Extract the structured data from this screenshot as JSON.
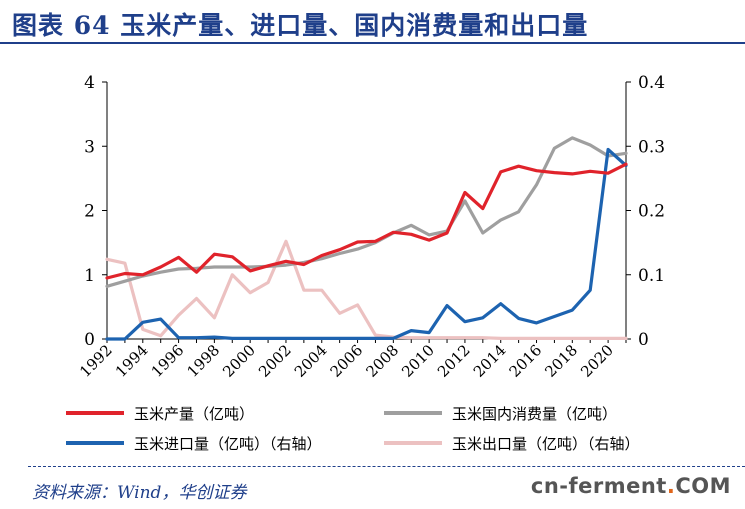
{
  "header": {
    "title": "图表 64    玉米产量、进口量、国内消费量和出口量"
  },
  "source": "资料来源：Wind，华创证券",
  "watermark": {
    "pre": "cn-ferment",
    "dot": ".",
    "post": "COM"
  },
  "chart_data": {
    "type": "line",
    "x": [
      "1992",
      "1993",
      "1994",
      "1995",
      "1996",
      "1997",
      "1998",
      "1999",
      "2000",
      "2001",
      "2002",
      "2003",
      "2004",
      "2005",
      "2006",
      "2007",
      "2008",
      "2009",
      "2010",
      "2011",
      "2012",
      "2013",
      "2014",
      "2015",
      "2016",
      "2017",
      "2018",
      "2019",
      "2020",
      "2021"
    ],
    "x_tick_labels": [
      "1992",
      "1994",
      "1996",
      "1998",
      "2000",
      "2002",
      "2004",
      "2006",
      "2008",
      "2010",
      "2012",
      "2014",
      "2016",
      "2018",
      "2020"
    ],
    "y_left": {
      "range": [
        0,
        4
      ],
      "ticks": [
        "0",
        "1",
        "2",
        "3",
        "4"
      ]
    },
    "y_right": {
      "range": [
        0,
        0.4
      ],
      "ticks": [
        "0",
        "0.1",
        "0.2",
        "0.3",
        "0.4"
      ]
    },
    "grid": false,
    "legend_position": "bottom",
    "series": [
      {
        "name": "玉米产量（亿吨）",
        "axis": "left",
        "color": "#e0232b",
        "values": [
          0.95,
          1.02,
          1.0,
          1.12,
          1.27,
          1.04,
          1.32,
          1.28,
          1.06,
          1.14,
          1.21,
          1.16,
          1.3,
          1.39,
          1.51,
          1.52,
          1.66,
          1.63,
          1.54,
          1.65,
          2.28,
          2.03,
          2.6,
          2.69,
          2.62,
          2.59,
          2.57,
          2.61,
          2.58,
          2.72
        ]
      },
      {
        "name": "玉米国内消费量（亿吨）",
        "axis": "left",
        "color": "#9f9f9f",
        "values": [
          0.82,
          0.9,
          0.98,
          1.04,
          1.09,
          1.1,
          1.12,
          1.12,
          1.12,
          1.13,
          1.15,
          1.19,
          1.25,
          1.33,
          1.4,
          1.5,
          1.65,
          1.77,
          1.62,
          1.68,
          2.15,
          1.65,
          1.85,
          1.98,
          2.4,
          2.97,
          3.13,
          3.02,
          2.85,
          2.89
        ]
      },
      {
        "name": "玉米进口量（亿吨）（右轴）",
        "axis": "right",
        "color": "#1d63b0",
        "values": [
          0.0,
          0.0,
          0.026,
          0.031,
          0.002,
          0.002,
          0.003,
          0.001,
          0.001,
          0.001,
          0.001,
          0.001,
          0.001,
          0.001,
          0.001,
          0.001,
          0.001,
          0.013,
          0.01,
          0.052,
          0.027,
          0.033,
          0.055,
          0.032,
          0.025,
          0.035,
          0.045,
          0.076,
          0.295,
          0.27
        ]
      },
      {
        "name": "玉米出口量（亿吨）（右轴）",
        "axis": "right",
        "color": "#ecc1c1",
        "values": [
          0.124,
          0.118,
          0.015,
          0.005,
          0.037,
          0.063,
          0.033,
          0.1,
          0.072,
          0.088,
          0.152,
          0.076,
          0.076,
          0.04,
          0.053,
          0.006,
          0.003,
          0.002,
          0.002,
          0.002,
          0.002,
          0.002,
          0.001,
          0.001,
          0.001,
          0.001,
          0.001,
          0.001,
          0.001,
          0.001
        ]
      }
    ]
  }
}
